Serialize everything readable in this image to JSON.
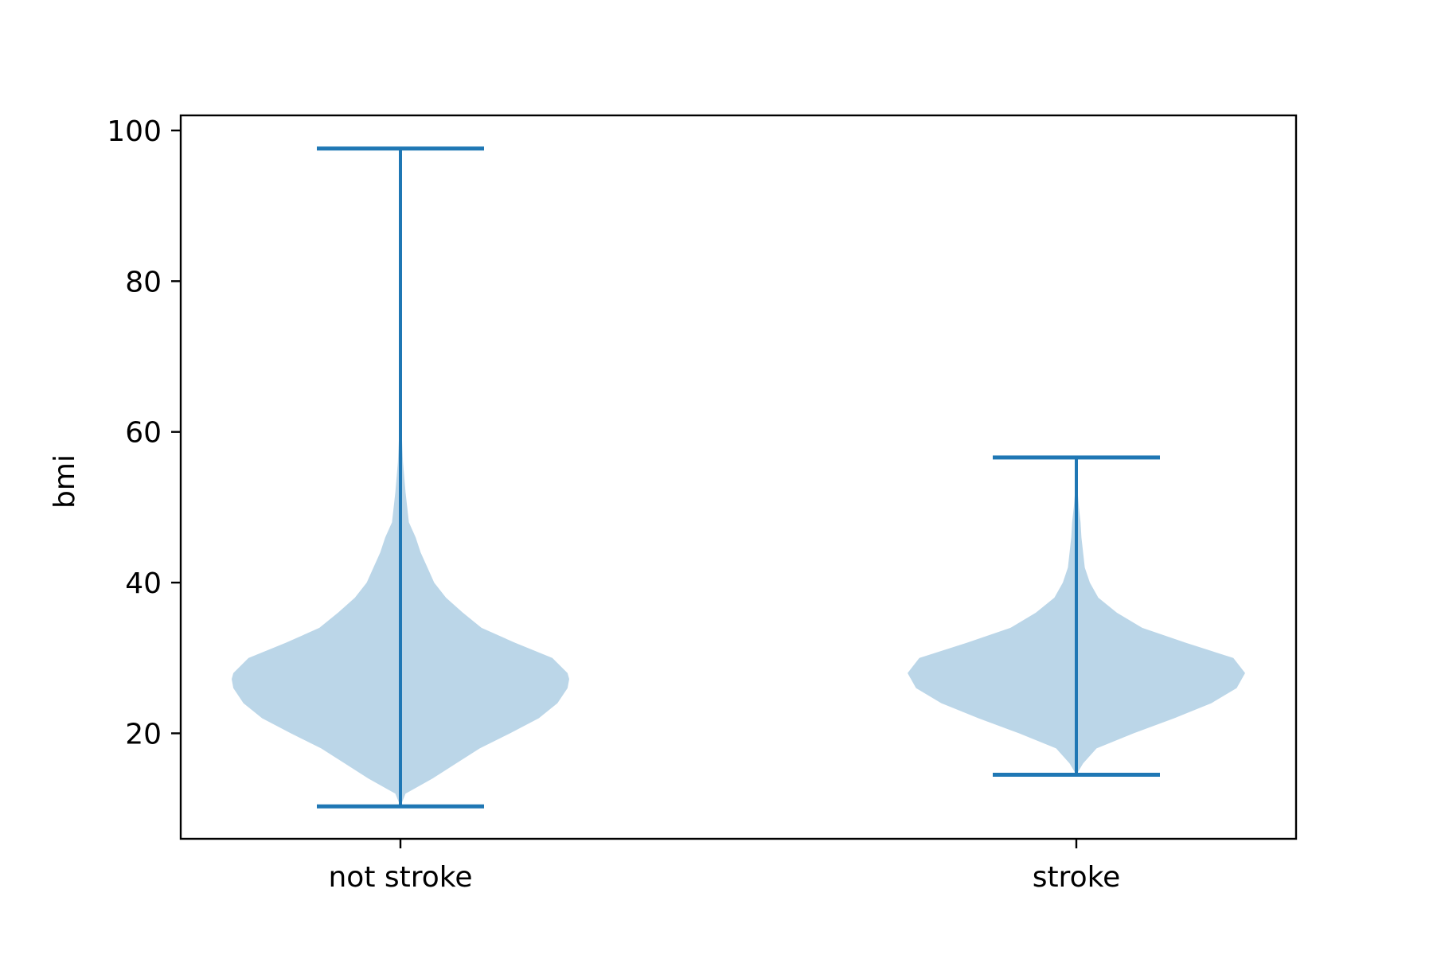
{
  "chart_data": {
    "type": "violin",
    "title": "",
    "xlabel": "",
    "ylabel": "bmi",
    "ylim": [
      6,
      102
    ],
    "yticks": [
      20,
      40,
      60,
      80,
      100
    ],
    "ytick_labels": [
      "20",
      "40",
      "60",
      "80",
      "100"
    ],
    "categories": [
      "not stroke",
      "stroke"
    ],
    "series": [
      {
        "name": "not stroke",
        "min": 10.3,
        "max": 97.6,
        "density": [
          [
            10.3,
            0.0
          ],
          [
            12,
            0.03
          ],
          [
            14,
            0.19
          ],
          [
            16,
            0.33
          ],
          [
            18,
            0.47
          ],
          [
            20,
            0.65
          ],
          [
            22,
            0.82
          ],
          [
            24,
            0.93
          ],
          [
            26,
            0.99
          ],
          [
            27.2,
            1.0
          ],
          [
            28,
            0.99
          ],
          [
            30,
            0.9
          ],
          [
            32,
            0.68
          ],
          [
            34,
            0.48
          ],
          [
            36,
            0.37
          ],
          [
            38,
            0.27
          ],
          [
            40,
            0.2
          ],
          [
            42,
            0.16
          ],
          [
            44,
            0.12
          ],
          [
            46,
            0.09
          ],
          [
            48,
            0.05
          ],
          [
            52,
            0.03
          ],
          [
            56,
            0.015
          ],
          [
            60,
            0.007
          ],
          [
            70,
            0.003
          ],
          [
            80,
            0.002
          ],
          [
            97.6,
            0.0
          ]
        ]
      },
      {
        "name": "stroke",
        "min": 14.5,
        "max": 56.6,
        "density": [
          [
            14.5,
            0.0
          ],
          [
            16,
            0.04
          ],
          [
            18,
            0.12
          ],
          [
            20,
            0.34
          ],
          [
            22,
            0.58
          ],
          [
            24,
            0.8
          ],
          [
            26,
            0.95
          ],
          [
            28,
            1.0
          ],
          [
            30,
            0.93
          ],
          [
            32,
            0.65
          ],
          [
            34,
            0.39
          ],
          [
            36,
            0.24
          ],
          [
            38,
            0.13
          ],
          [
            40,
            0.08
          ],
          [
            42,
            0.05
          ],
          [
            44,
            0.04
          ],
          [
            46,
            0.03
          ],
          [
            48,
            0.025
          ],
          [
            50,
            0.015
          ],
          [
            52,
            0.008
          ],
          [
            56.6,
            0.0
          ]
        ]
      }
    ],
    "colors": {
      "body": "#1f77b4",
      "line": "#1f77b4",
      "body_opacity": 0.3,
      "axes": "#000000"
    }
  }
}
